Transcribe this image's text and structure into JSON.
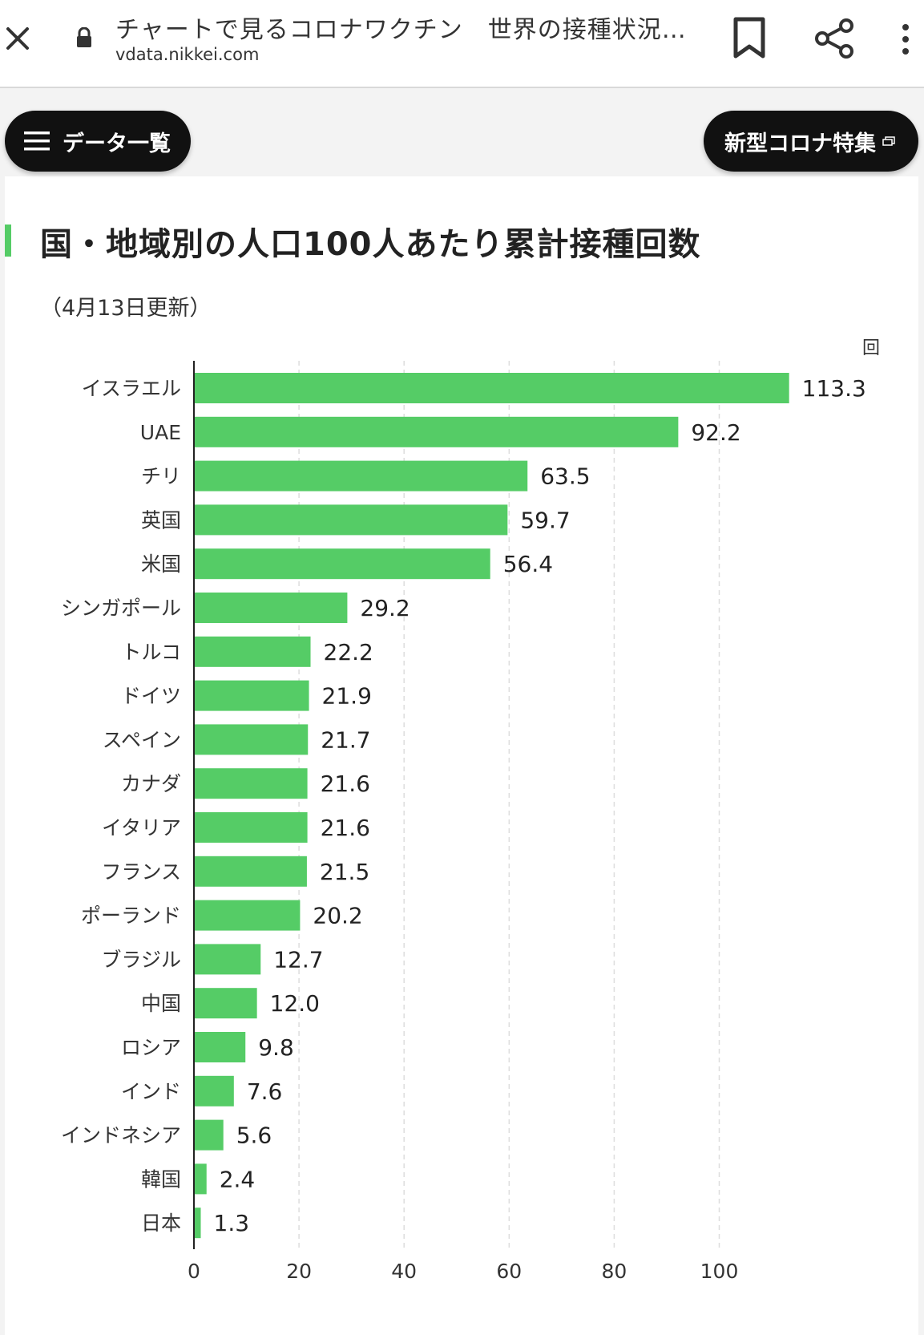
{
  "browser": {
    "title": "チャートで見るコロナワクチン　世界の接種状況…",
    "url": "vdata.nikkei.com",
    "icons": [
      "close-icon",
      "lock-icon",
      "bookmark-icon",
      "share-icon",
      "more-vert-icon"
    ]
  },
  "nav": {
    "data_list_label": "データ一覧",
    "feature_label": "新型コロナ特集"
  },
  "chart_data": {
    "type": "bar",
    "orientation": "horizontal",
    "title": "国・地域別の人口100人あたり累計接種回数",
    "subtitle": "（4月13日更新）",
    "unit": "回",
    "color": "#55cc66",
    "categories": [
      "イスラエル",
      "UAE",
      "チリ",
      "英国",
      "米国",
      "シンガポール",
      "トルコ",
      "ドイツ",
      "スペイン",
      "カナダ",
      "イタリア",
      "フランス",
      "ポーランド",
      "ブラジル",
      "中国",
      "ロシア",
      "インド",
      "インドネシア",
      "韓国",
      "日本"
    ],
    "value_labels": [
      "113.3",
      "92.2",
      "63.5",
      "59.7",
      "56.4",
      "29.2",
      "22.2",
      "21.9",
      "21.7",
      "21.6",
      "21.6",
      "21.5",
      "20.2",
      "12.7",
      "12.0",
      "9.8",
      "7.6",
      "5.6",
      "2.4",
      "1.3"
    ],
    "values": [
      113.3,
      92.2,
      63.5,
      59.7,
      56.4,
      29.2,
      22.2,
      21.9,
      21.7,
      21.6,
      21.6,
      21.5,
      20.2,
      12.7,
      12.0,
      9.8,
      7.6,
      5.6,
      2.4,
      1.3
    ],
    "xlim": [
      0,
      120
    ],
    "xticks": [
      0,
      20,
      40,
      60,
      80,
      100
    ],
    "grid": true
  }
}
